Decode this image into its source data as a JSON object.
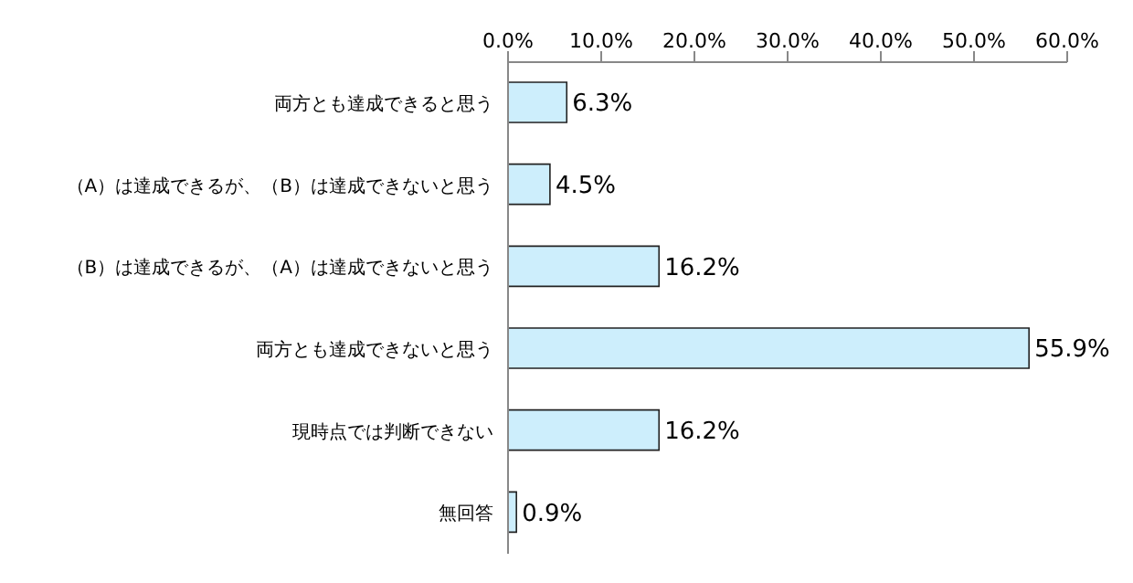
{
  "chart_data": {
    "type": "bar",
    "orientation": "horizontal",
    "categories": [
      "両方とも達成できると思う",
      "（A）は達成できるが、（B）は達成できないと思う",
      "（B）は達成できるが、（A）は達成できないと思う",
      "両方とも達成できないと思う",
      "現時点では判断できない",
      "無回答"
    ],
    "values": [
      6.3,
      4.5,
      16.2,
      55.9,
      16.2,
      0.9
    ],
    "value_labels": [
      "6.3%",
      "4.5%",
      "16.2%",
      "55.9%",
      "16.2%",
      "0.9%"
    ],
    "color": "#cdeefc",
    "xlim": [
      0,
      60
    ],
    "xticks": [
      {
        "value": 0,
        "label": "0.0%"
      },
      {
        "value": 10,
        "label": "10.0%"
      },
      {
        "value": 20,
        "label": "20.0%"
      },
      {
        "value": 30,
        "label": "30.0%"
      },
      {
        "value": 40,
        "label": "40.0%"
      },
      {
        "value": 50,
        "label": "50.0%"
      },
      {
        "value": 60,
        "label": "60.0%"
      }
    ],
    "grid": false,
    "legend": false
  }
}
